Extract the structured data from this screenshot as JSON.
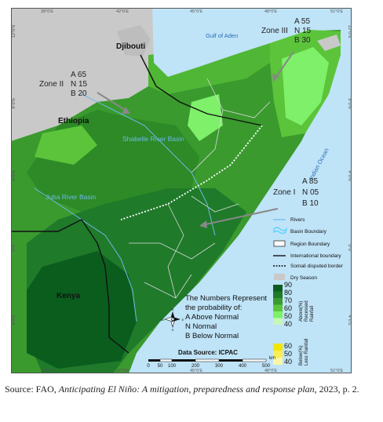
{
  "map": {
    "axis_top": [
      "39°0'E",
      "42°0'E",
      "45°0'E",
      "48°0'E",
      "51°0'E"
    ],
    "axis_bottom": [
      "39°0'E",
      "42°0'E",
      "45°0'E",
      "48°0'E",
      "51°0'E"
    ],
    "axis_left": [
      "12°0'N",
      "8°0'N",
      "4°0'N",
      "0°0'",
      "4°0'S"
    ],
    "axis_right": [
      "12°0'N",
      "8°0'N",
      "4°0'N",
      "0°0'",
      "4°0'S"
    ],
    "labels": {
      "djibouti": "Djibouti",
      "gulf": "Gulf of Aden",
      "ethiopia": "Ethiopia",
      "shabelle": "Shabelle River Basin",
      "juba": "Juba River Basin",
      "ocean": "Indian Ocean",
      "kenya": "Kenya"
    },
    "zones": [
      {
        "name": "Zone I",
        "lines": [
          "A 85",
          "N 05",
          "B 10"
        ]
      },
      {
        "name": "Zone II",
        "lines": [
          "A 65",
          "N 15",
          "B 20"
        ]
      },
      {
        "name": "Zone III",
        "lines": [
          "A 55",
          "N 15",
          "B 30"
        ]
      }
    ],
    "legend": [
      {
        "label": "Rivers",
        "swatch": "river"
      },
      {
        "label": "Basin Boundary",
        "swatch": "basin"
      },
      {
        "label": "Region Boundary",
        "swatch": "region"
      },
      {
        "label": "International boundary",
        "swatch": "intl"
      },
      {
        "label": "Somali disputed border",
        "swatch": "disputed"
      },
      {
        "label": "Dry Season",
        "swatch": "dry"
      }
    ],
    "above_scale": {
      "ticks": [
        "90",
        "80",
        "70",
        "60",
        "50",
        "40"
      ],
      "colors": [
        "#0b5d1e",
        "#1f7a2a",
        "#3a9a2e",
        "#5cc43a",
        "#7ef06a",
        "#c6f7b8"
      ],
      "caption": [
        "Above(%)",
        "Recessed",
        "Rainfall"
      ]
    },
    "below_scale": {
      "ticks": [
        "60",
        "50",
        "40"
      ],
      "colors": [
        "#f2e600",
        "#f7ef55",
        "#fbf6a8"
      ],
      "caption": [
        "Below(%)",
        "Less Rainfall"
      ]
    },
    "probability_note": [
      "The Numbers Represent",
      "the probability of:",
      "A  Above Normal",
      "N  Normal",
      "B  Below Normal"
    ],
    "compass": {
      "n": "N",
      "s": "S",
      "e": "E",
      "w": "W"
    },
    "data_source": "Data Source: ICPAC",
    "scale_bar": {
      "ticks": [
        "0",
        "50",
        "100",
        "200",
        "300",
        "400",
        "500"
      ],
      "unit": "km"
    }
  },
  "source": {
    "prefix": "Source: FAO, ",
    "title": "Anticipating El Niño: A mitigation, preparedness and response plan",
    "suffix": ", 2023, p. 2."
  }
}
